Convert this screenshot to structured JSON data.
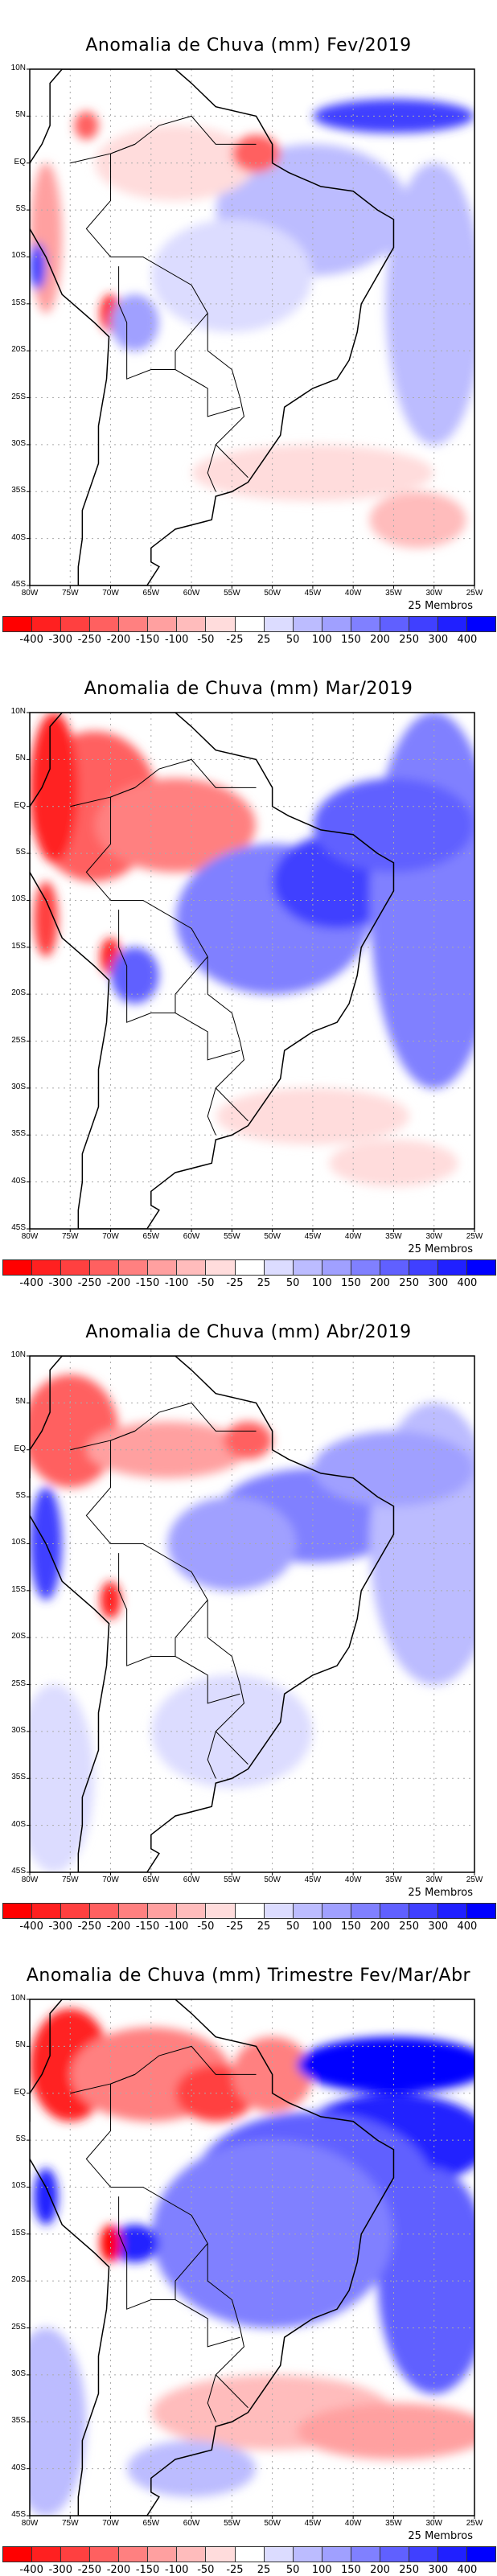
{
  "panels": [
    {
      "title": "Anomalia de Chuva (mm) Fev/2019"
    },
    {
      "title": "Anomalia de Chuva (mm) Mar/2019"
    },
    {
      "title": "Anomalia de Chuva (mm) Abr/2019"
    },
    {
      "title": "Anomalia de Chuva (mm) Trimestre Fev/Mar/Abr"
    }
  ],
  "lat_labels": [
    "10N",
    "5N",
    "EQ",
    "5S",
    "10S",
    "15S",
    "20S",
    "25S",
    "30S",
    "35S",
    "40S",
    "45S"
  ],
  "lon_labels": [
    "80W",
    "75W",
    "70W",
    "65W",
    "60W",
    "55W",
    "50W",
    "45W",
    "40W",
    "35W",
    "30W",
    "25W"
  ],
  "members_label": "25 Membros",
  "colorbar": {
    "labels": [
      "-400",
      "-300",
      "-250",
      "-200",
      "-150",
      "-100",
      "-50",
      "-25",
      "25",
      "50",
      "100",
      "150",
      "200",
      "250",
      "300",
      "400"
    ],
    "colors": [
      "#ff0000",
      "#ff2020",
      "#ff4040",
      "#ff6060",
      "#ff8080",
      "#ffa0a0",
      "#ffbcbc",
      "#ffdcdc",
      "#ffffff",
      "#dcdcff",
      "#bcbcff",
      "#a0a0ff",
      "#8080ff",
      "#6060ff",
      "#4040ff",
      "#2020ff",
      "#0000ff"
    ]
  }
}
